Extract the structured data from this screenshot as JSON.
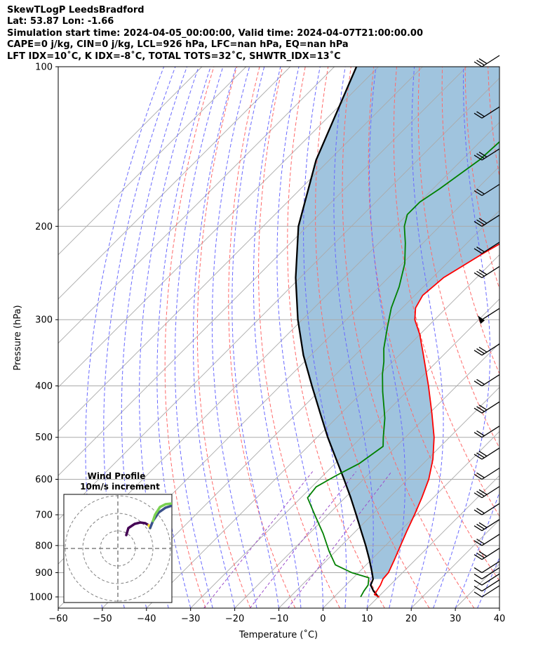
{
  "header": {
    "line1": "SkewTLogP LeedsBradford",
    "line2": "Lat: 53.87   Lon: -1.66",
    "line3": "Simulation start time: 2024-04-05_00:00:00, Valid time: 2024-04-07T21:00:00.00",
    "line4": "CAPE=0 j/kg, CIN=0 j/kg, LCL=926 hPa, LFC=nan hPa, EQ=nan hPa",
    "line5": "LFT IDX=10˚C, K IDX=-8˚C, TOTAL TOTS=32˚C, SHWTR_IDX=13˚C"
  },
  "chart_data": {
    "type": "line",
    "xlabel": "Temperature (˚C)",
    "ylabel": "Pressure (hPa)",
    "x_ticks": [
      "−60",
      "−50",
      "−40",
      "−30",
      "−20",
      "−10",
      "0",
      "10",
      "20",
      "30",
      "40"
    ],
    "y_ticks": [
      "100",
      "200",
      "300",
      "400",
      "500",
      "600",
      "700",
      "800",
      "900",
      "1000"
    ],
    "xlim": [
      -60,
      40
    ],
    "ylim": [
      1050,
      100
    ],
    "y_scale": "log",
    "skew": true,
    "colors": {
      "temperature": "#ff0000",
      "dewpoint": "#008000",
      "parcel": "#000000",
      "shade": "#a0c4de",
      "dry_adiabat": "#ff6a6a",
      "moist_adiabat": "#6a6aff",
      "mixing_ratio": "#9b4dca",
      "isotherm": "#aaaaaa"
    },
    "series": [
      {
        "key": "temperature",
        "points": [
          [
            10.2,
            1000
          ],
          [
            8.6,
            990
          ],
          [
            7.8,
            950
          ],
          [
            7.0,
            925
          ],
          [
            6.8,
            900
          ],
          [
            5.2,
            850
          ],
          [
            3.4,
            800
          ],
          [
            1.5,
            750
          ],
          [
            -0.4,
            700
          ],
          [
            -2.6,
            650
          ],
          [
            -5.2,
            600
          ],
          [
            -8.8,
            550
          ],
          [
            -13.5,
            500
          ],
          [
            -19.5,
            450
          ],
          [
            -26.4,
            400
          ],
          [
            -34.5,
            350
          ],
          [
            -40.0,
            320
          ],
          [
            -44.5,
            300
          ],
          [
            -47.0,
            285
          ],
          [
            -48.2,
            270
          ],
          [
            -47.5,
            250
          ],
          [
            -44.0,
            225
          ],
          [
            -39.5,
            200
          ],
          [
            -37.5,
            190
          ],
          [
            -38.0,
            180
          ],
          [
            -40.0,
            170
          ],
          [
            -43.0,
            150
          ],
          [
            -48.0,
            125
          ],
          [
            -52.0,
            100
          ]
        ]
      },
      {
        "key": "dewpoint",
        "points": [
          [
            6.0,
            1000
          ],
          [
            5.4,
            975
          ],
          [
            5.0,
            950
          ],
          [
            3.5,
            920
          ],
          [
            -1.5,
            900
          ],
          [
            -7.0,
            870
          ],
          [
            -11.5,
            820
          ],
          [
            -16.8,
            760
          ],
          [
            -23.0,
            700
          ],
          [
            -28.5,
            650
          ],
          [
            -29.0,
            620
          ],
          [
            -27.0,
            590
          ],
          [
            -24.5,
            560
          ],
          [
            -23.0,
            520
          ],
          [
            -25.0,
            500
          ],
          [
            -29.0,
            460
          ],
          [
            -35.5,
            410
          ],
          [
            -39.5,
            380
          ],
          [
            -42.0,
            360
          ],
          [
            -45.0,
            340
          ],
          [
            -49.0,
            310
          ],
          [
            -52.5,
            285
          ],
          [
            -55.5,
            260
          ],
          [
            -59.5,
            235
          ],
          [
            -64.0,
            215
          ],
          [
            -68.0,
            200
          ],
          [
            -70.0,
            190
          ],
          [
            -70.0,
            180
          ],
          [
            -68.5,
            170
          ],
          [
            -66.0,
            150
          ],
          [
            -65.0,
            125
          ],
          [
            -64.5,
            100
          ]
        ]
      },
      {
        "key": "parcel",
        "points": [
          [
            10.0,
            1000
          ],
          [
            7.6,
            975
          ],
          [
            5.6,
            950
          ],
          [
            4.8,
            926
          ],
          [
            3.1,
            900
          ],
          [
            -0.5,
            850
          ],
          [
            -4.5,
            800
          ],
          [
            -8.9,
            750
          ],
          [
            -13.6,
            700
          ],
          [
            -18.7,
            650
          ],
          [
            -24.4,
            600
          ],
          [
            -30.7,
            550
          ],
          [
            -37.6,
            500
          ],
          [
            -44.8,
            450
          ],
          [
            -52.8,
            400
          ],
          [
            -61.7,
            350
          ],
          [
            -71.0,
            300
          ],
          [
            -81.0,
            250
          ],
          [
            -92.0,
            200
          ],
          [
            -103.0,
            150
          ],
          [
            -115.0,
            100
          ]
        ]
      }
    ],
    "wind_barbs_pressure": [
      1000,
      975,
      950,
      925,
      900,
      850,
      800,
      750,
      700,
      650,
      600,
      550,
      500,
      450,
      400,
      350,
      300,
      250,
      225,
      200,
      175,
      150,
      125,
      100
    ],
    "inset": {
      "title": "Wind Profile",
      "subtitle": "10m/s increment"
    }
  }
}
